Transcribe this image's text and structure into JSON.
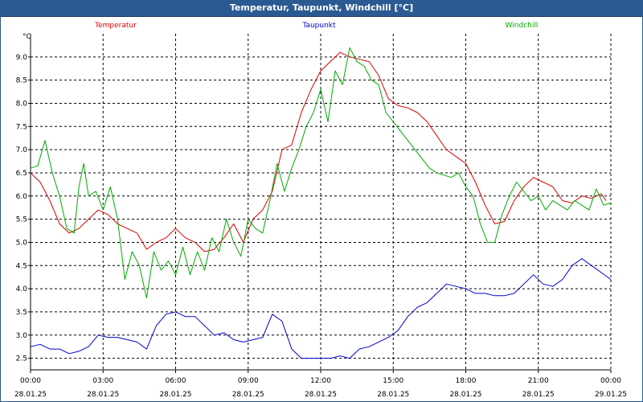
{
  "window": {
    "title": "Temperatur, Taupunkt, Windchill [°C]"
  },
  "colors": {
    "titlebar": "#2b5a93",
    "grid": "#000000",
    "Temperatur": "#dd0000",
    "Taupunkt": "#0000cc",
    "Windchill": "#00aa00"
  },
  "chart_data": {
    "type": "line",
    "title": "Temperatur, Taupunkt, Windchill [°C]",
    "yunit": "°C",
    "ylim": [
      2.25,
      9.5
    ],
    "yticks": [
      "2.5",
      "3.0",
      "3.5",
      "4.0",
      "4.5",
      "5.0",
      "5.5",
      "6.0",
      "6.5",
      "7.0",
      "7.5",
      "8.0",
      "8.5",
      "9.0"
    ],
    "xlim": [
      0,
      24
    ],
    "grid": true,
    "legend_placement": "top",
    "xticks": [
      {
        "time": "00:00",
        "date": "28.01.25"
      },
      {
        "time": "03:00",
        "date": "28.01.25"
      },
      {
        "time": "06:00",
        "date": "28.01.25"
      },
      {
        "time": "09:00",
        "date": "28.01.25"
      },
      {
        "time": "12:00",
        "date": "28.01.25"
      },
      {
        "time": "15:00",
        "date": "28.01.25"
      },
      {
        "time": "18:00",
        "date": "28.01.25"
      },
      {
        "time": "21:00",
        "date": "28.01.25"
      },
      {
        "time": "00:00",
        "date": "29.01.25"
      }
    ],
    "series": [
      {
        "name": "Temperatur",
        "color": "#dd0000",
        "x": [
          0,
          0.4,
          0.8,
          1.2,
          1.6,
          2.0,
          2.4,
          2.8,
          3.2,
          3.6,
          4.0,
          4.4,
          4.8,
          5.2,
          5.6,
          6.0,
          6.4,
          6.8,
          7.2,
          7.6,
          8.0,
          8.4,
          8.8,
          9.2,
          9.6,
          10.0,
          10.4,
          10.8,
          11.2,
          11.6,
          12.0,
          12.4,
          12.8,
          13.2,
          13.6,
          14.0,
          14.4,
          14.8,
          15.2,
          15.6,
          16.0,
          16.4,
          16.8,
          17.2,
          17.6,
          18.0,
          18.4,
          18.8,
          19.2,
          19.6,
          20.0,
          20.4,
          20.8,
          21.2,
          21.6,
          22.0,
          22.4,
          22.8,
          23.2,
          23.6,
          23.8
        ],
        "values": [
          6.5,
          6.3,
          5.9,
          5.4,
          5.2,
          5.3,
          5.5,
          5.7,
          5.6,
          5.4,
          5.3,
          5.2,
          4.85,
          5.0,
          5.1,
          5.3,
          5.1,
          5.0,
          4.8,
          4.85,
          5.1,
          5.4,
          5.0,
          5.5,
          5.7,
          6.1,
          7.0,
          7.1,
          7.8,
          8.3,
          8.7,
          8.9,
          9.1,
          9.0,
          8.95,
          8.9,
          8.6,
          8.1,
          7.95,
          7.9,
          7.8,
          7.6,
          7.3,
          7.0,
          6.85,
          6.7,
          6.3,
          5.8,
          5.4,
          5.45,
          5.9,
          6.2,
          6.4,
          6.3,
          6.2,
          5.9,
          5.85,
          6.0,
          5.95,
          6.05,
          5.9
        ]
      },
      {
        "name": "Taupunkt",
        "color": "#0000cc",
        "x": [
          0,
          0.4,
          0.8,
          1.2,
          1.6,
          2.0,
          2.4,
          2.8,
          3.2,
          3.6,
          4.0,
          4.4,
          4.8,
          5.2,
          5.6,
          6.0,
          6.4,
          6.8,
          7.2,
          7.6,
          8.0,
          8.4,
          8.8,
          9.2,
          9.6,
          10.0,
          10.4,
          10.8,
          11.2,
          11.6,
          12.0,
          12.4,
          12.8,
          13.2,
          13.6,
          14.0,
          14.4,
          14.8,
          15.2,
          15.6,
          16.0,
          16.4,
          16.8,
          17.2,
          17.6,
          18.0,
          18.4,
          18.8,
          19.2,
          19.6,
          20.0,
          20.4,
          20.8,
          21.2,
          21.6,
          22.0,
          22.4,
          22.8,
          23.2,
          23.6,
          24.0
        ],
        "values": [
          2.75,
          2.8,
          2.7,
          2.7,
          2.6,
          2.65,
          2.75,
          3.0,
          2.95,
          2.95,
          2.9,
          2.85,
          2.7,
          3.2,
          3.45,
          3.5,
          3.4,
          3.4,
          3.2,
          3.0,
          3.05,
          2.9,
          2.85,
          2.9,
          2.95,
          3.45,
          3.3,
          2.7,
          2.5,
          2.5,
          2.5,
          2.5,
          2.55,
          2.5,
          2.7,
          2.75,
          2.85,
          2.95,
          3.1,
          3.4,
          3.6,
          3.7,
          3.9,
          4.1,
          4.05,
          4.0,
          3.9,
          3.9,
          3.85,
          3.85,
          3.9,
          4.1,
          4.3,
          4.1,
          4.05,
          4.2,
          4.5,
          4.65,
          4.5,
          4.35,
          4.2
        ]
      },
      {
        "name": "Windchill",
        "color": "#00aa00",
        "x": [
          0,
          0.3,
          0.6,
          0.9,
          1.2,
          1.5,
          1.8,
          2.0,
          2.2,
          2.4,
          2.7,
          3.0,
          3.3,
          3.6,
          3.9,
          4.2,
          4.5,
          4.8,
          5.1,
          5.4,
          5.7,
          6.0,
          6.3,
          6.6,
          6.9,
          7.2,
          7.5,
          7.8,
          8.1,
          8.4,
          8.7,
          9.0,
          9.3,
          9.6,
          9.9,
          10.2,
          10.5,
          10.8,
          11.1,
          11.4,
          11.7,
          12.0,
          12.3,
          12.6,
          12.9,
          13.2,
          13.5,
          13.8,
          14.1,
          14.4,
          14.7,
          15.0,
          15.3,
          15.6,
          15.9,
          16.2,
          16.5,
          16.8,
          17.1,
          17.4,
          17.7,
          18.0,
          18.3,
          18.6,
          18.9,
          19.2,
          19.5,
          19.8,
          20.1,
          20.4,
          20.7,
          21.0,
          21.3,
          21.6,
          21.9,
          22.2,
          22.5,
          22.8,
          23.1,
          23.4,
          23.7,
          24.0
        ],
        "values": [
          6.6,
          6.65,
          7.2,
          6.5,
          6.0,
          5.3,
          5.2,
          6.2,
          6.7,
          6.0,
          6.1,
          5.7,
          6.2,
          5.5,
          4.2,
          4.8,
          4.5,
          3.8,
          4.8,
          4.4,
          4.6,
          4.3,
          4.9,
          4.3,
          4.8,
          4.4,
          5.1,
          4.8,
          5.5,
          5.0,
          4.7,
          5.5,
          5.3,
          5.2,
          5.9,
          6.7,
          6.1,
          6.6,
          7.0,
          7.5,
          7.8,
          8.3,
          7.6,
          8.7,
          8.4,
          9.2,
          8.9,
          8.8,
          8.5,
          8.4,
          7.8,
          7.6,
          7.4,
          7.2,
          7.0,
          6.8,
          6.6,
          6.5,
          6.45,
          6.4,
          6.5,
          6.2,
          6.0,
          5.4,
          5.0,
          5.0,
          5.6,
          6.0,
          6.3,
          6.1,
          5.9,
          6.0,
          5.7,
          5.9,
          5.8,
          5.7,
          5.9,
          5.8,
          5.7,
          6.15,
          5.8,
          5.85
        ]
      }
    ]
  }
}
